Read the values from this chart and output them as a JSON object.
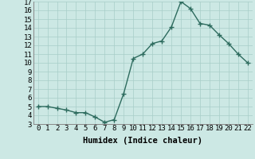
{
  "x": [
    0,
    1,
    2,
    3,
    4,
    5,
    6,
    7,
    8,
    9,
    10,
    11,
    12,
    13,
    14,
    15,
    16,
    17,
    18,
    19,
    20,
    21,
    22
  ],
  "y": [
    5.0,
    5.0,
    4.8,
    4.6,
    4.3,
    4.3,
    3.8,
    3.2,
    3.5,
    6.5,
    10.5,
    11.0,
    12.2,
    12.5,
    14.1,
    17.0,
    16.2,
    14.5,
    14.3,
    13.2,
    12.2,
    11.0,
    10.0
  ],
  "line_color": "#2d6b5e",
  "marker_color": "#2d6b5e",
  "bg_color": "#cce8e4",
  "grid_color": "#a8cdc8",
  "xlabel": "Humidex (Indice chaleur)",
  "xlim": [
    -0.5,
    22.5
  ],
  "ylim": [
    3,
    17
  ],
  "yticks": [
    3,
    4,
    5,
    6,
    7,
    8,
    9,
    10,
    11,
    12,
    13,
    14,
    15,
    16,
    17
  ],
  "xticks": [
    0,
    1,
    2,
    3,
    4,
    5,
    6,
    7,
    8,
    9,
    10,
    11,
    12,
    13,
    14,
    15,
    16,
    17,
    18,
    19,
    20,
    21,
    22
  ],
  "xlabel_fontsize": 7.5,
  "tick_fontsize": 6.5,
  "marker_size": 4,
  "line_width": 1.0
}
